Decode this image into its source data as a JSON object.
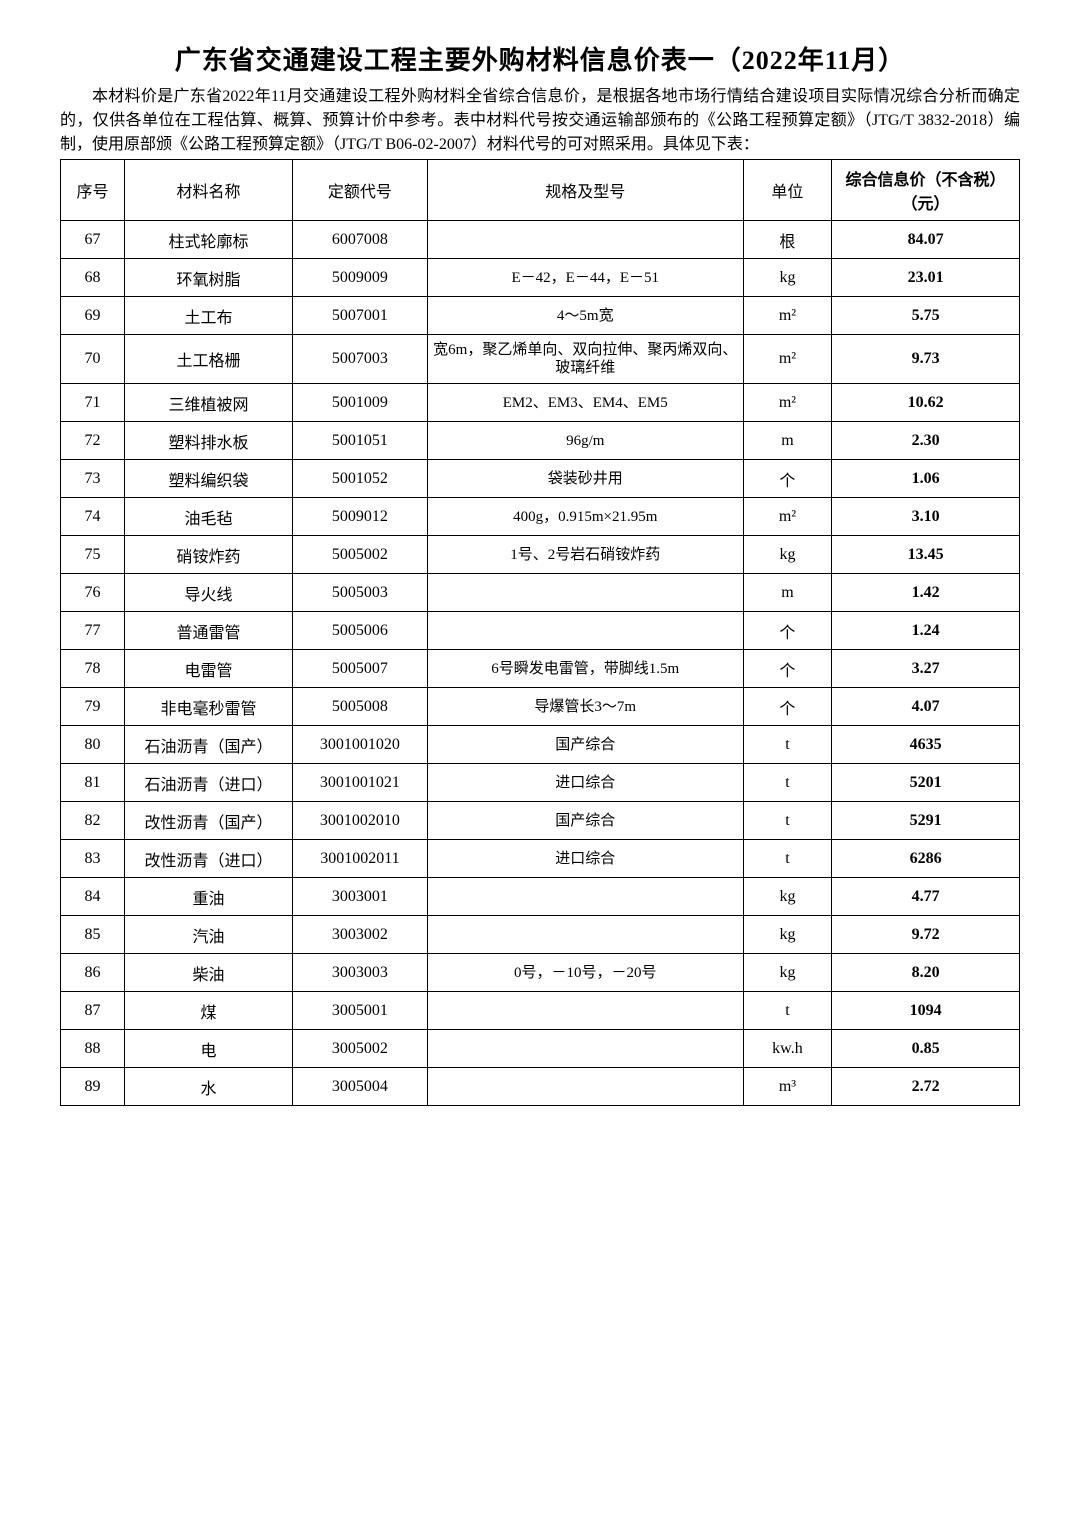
{
  "title": "广东省交通建设工程主要外购材料信息价表一（2022年11月）",
  "description": "本材料价是广东省2022年11月交通建设工程外购材料全省综合信息价，是根据各地市场行情结合建设项目实际情况综合分析而确定的，仅供各单位在工程估算、概算、预算计价中参考。表中材料代号按交通运输部颁布的《公路工程预算定额》（JTG/T 3832-2018）编制，使用原部颁《公路工程预算定额》（JTG/T B06-02-2007）材料代号的可对照采用。具体见下表：",
  "table": {
    "columns": [
      "序号",
      "材料名称",
      "定额代号",
      "规格及型号",
      "单位",
      "综合信息价（不含税）（元）"
    ],
    "rows": [
      {
        "seq": "67",
        "name": "柱式轮廓标",
        "code": "6007008",
        "spec": "",
        "unit": "根",
        "price": "84.07"
      },
      {
        "seq": "68",
        "name": "环氧树脂",
        "code": "5009009",
        "spec": "E－42，E－44，E－51",
        "unit": "kg",
        "price": "23.01"
      },
      {
        "seq": "69",
        "name": "土工布",
        "code": "5007001",
        "spec": "4～5m宽",
        "unit": "m²",
        "price": "5.75"
      },
      {
        "seq": "70",
        "name": "土工格栅",
        "code": "5007003",
        "spec": "宽6m，聚乙烯单向、双向拉伸、聚丙烯双向、玻璃纤维",
        "unit": "m²",
        "price": "9.73"
      },
      {
        "seq": "71",
        "name": "三维植被网",
        "code": "5001009",
        "spec": "EM2、EM3、EM4、EM5",
        "unit": "m²",
        "price": "10.62"
      },
      {
        "seq": "72",
        "name": "塑料排水板",
        "code": "5001051",
        "spec": "96g/m",
        "unit": "m",
        "price": "2.30"
      },
      {
        "seq": "73",
        "name": "塑料编织袋",
        "code": "5001052",
        "spec": "袋装砂井用",
        "unit": "个",
        "price": "1.06"
      },
      {
        "seq": "74",
        "name": "油毛毡",
        "code": "5009012",
        "spec": "400g，0.915m×21.95m",
        "unit": "m²",
        "price": "3.10"
      },
      {
        "seq": "75",
        "name": "硝铵炸药",
        "code": "5005002",
        "spec": "1号、2号岩石硝铵炸药",
        "unit": "kg",
        "price": "13.45"
      },
      {
        "seq": "76",
        "name": "导火线",
        "code": "5005003",
        "spec": "",
        "unit": "m",
        "price": "1.42"
      },
      {
        "seq": "77",
        "name": "普通雷管",
        "code": "5005006",
        "spec": "",
        "unit": "个",
        "price": "1.24"
      },
      {
        "seq": "78",
        "name": "电雷管",
        "code": "5005007",
        "spec": "6号瞬发电雷管，带脚线1.5m",
        "unit": "个",
        "price": "3.27"
      },
      {
        "seq": "79",
        "name": "非电毫秒雷管",
        "code": "5005008",
        "spec": "导爆管长3～7m",
        "unit": "个",
        "price": "4.07"
      },
      {
        "seq": "80",
        "name": "石油沥青（国产）",
        "code": "3001001020",
        "spec": "国产综合",
        "unit": "t",
        "price": "4635"
      },
      {
        "seq": "81",
        "name": "石油沥青（进口）",
        "code": "3001001021",
        "spec": "进口综合",
        "unit": "t",
        "price": "5201"
      },
      {
        "seq": "82",
        "name": "改性沥青（国产）",
        "code": "3001002010",
        "spec": "国产综合",
        "unit": "t",
        "price": "5291"
      },
      {
        "seq": "83",
        "name": "改性沥青（进口）",
        "code": "3001002011",
        "spec": "进口综合",
        "unit": "t",
        "price": "6286"
      },
      {
        "seq": "84",
        "name": "重油",
        "code": "3003001",
        "spec": "",
        "unit": "kg",
        "price": "4.77"
      },
      {
        "seq": "85",
        "name": "汽油",
        "code": "3003002",
        "spec": "",
        "unit": "kg",
        "price": "9.72"
      },
      {
        "seq": "86",
        "name": "柴油",
        "code": "3003003",
        "spec": "0号，－10号，－20号",
        "unit": "kg",
        "price": "8.20"
      },
      {
        "seq": "87",
        "name": "煤",
        "code": "3005001",
        "spec": "",
        "unit": "t",
        "price": "1094"
      },
      {
        "seq": "88",
        "name": "电",
        "code": "3005002",
        "spec": "",
        "unit": "kw.h",
        "price": "0.85"
      },
      {
        "seq": "89",
        "name": "水",
        "code": "3005004",
        "spec": "",
        "unit": "m³",
        "price": "2.72"
      }
    ]
  },
  "styling": {
    "background_color": "#ffffff",
    "border_color": "#000000",
    "text_color": "#000000",
    "title_fontsize": 26,
    "body_fontsize": 16,
    "font_family": "SimSun"
  }
}
